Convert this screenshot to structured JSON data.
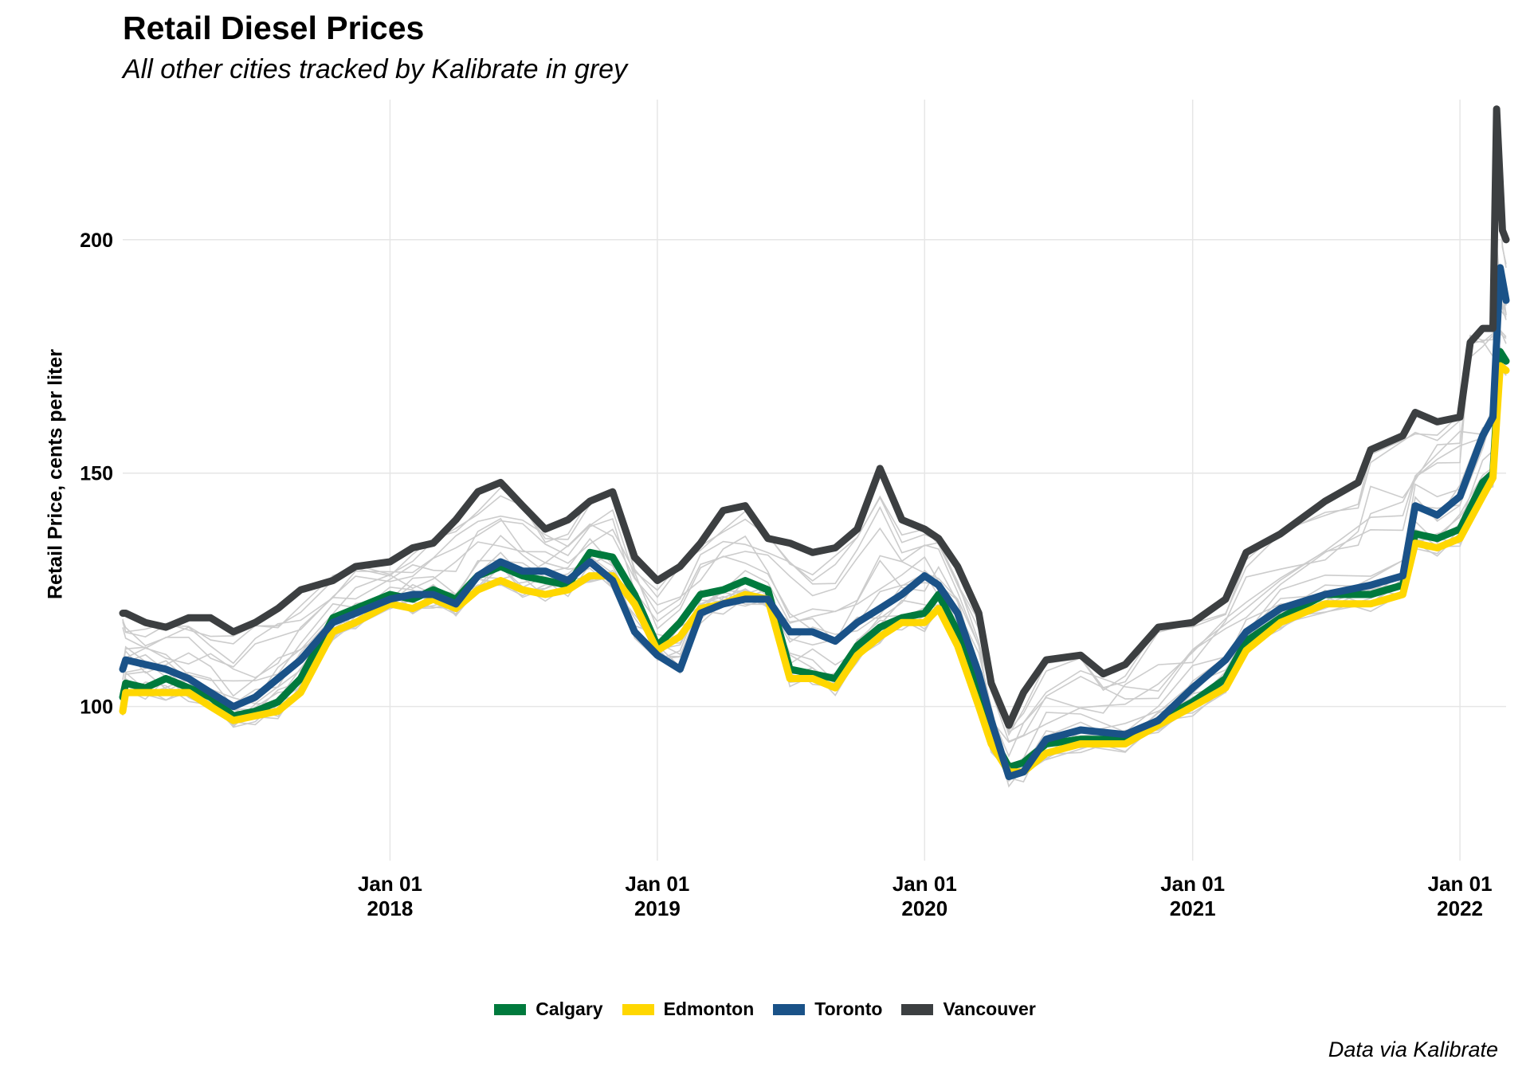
{
  "chart_data": {
    "type": "line",
    "title": "Retail Diesel Prices",
    "subtitle": "All other cities tracked by Kalibrate in grey",
    "xlabel": "",
    "ylabel": "Retail Price, cents per liter",
    "caption": "Data via Kalibrate",
    "xlim": [
      "2017-01-01",
      "2022-03-05"
    ],
    "ylim": [
      67,
      230
    ],
    "x_ticks": [
      {
        "date": "2018-01-01",
        "label": "Jan 01\n2018"
      },
      {
        "date": "2019-01-01",
        "label": "Jan 01\n2019"
      },
      {
        "date": "2020-01-01",
        "label": "Jan 01\n2020"
      },
      {
        "date": "2021-01-01",
        "label": "Jan 01\n2021"
      },
      {
        "date": "2022-01-01",
        "label": "Jan 01\n2022"
      }
    ],
    "y_ticks": [
      100,
      150,
      200
    ],
    "grid": true,
    "legend_position": "bottom",
    "background_series_color": "#cccccc",
    "series": [
      {
        "name": "Calgary",
        "color": "#007a3d",
        "points": [
          [
            "2017-01-01",
            102
          ],
          [
            "2017-01-05",
            105
          ],
          [
            "2017-02-01",
            104
          ],
          [
            "2017-03-01",
            106
          ],
          [
            "2017-04-01",
            104
          ],
          [
            "2017-05-01",
            102
          ],
          [
            "2017-06-01",
            98
          ],
          [
            "2017-07-01",
            99
          ],
          [
            "2017-08-01",
            101
          ],
          [
            "2017-09-01",
            106
          ],
          [
            "2017-10-15",
            119
          ],
          [
            "2017-11-15",
            121
          ],
          [
            "2018-01-01",
            124
          ],
          [
            "2018-02-01",
            123
          ],
          [
            "2018-03-01",
            125
          ],
          [
            "2018-04-01",
            123
          ],
          [
            "2018-05-01",
            128
          ],
          [
            "2018-06-01",
            130
          ],
          [
            "2018-07-01",
            128
          ],
          [
            "2018-08-01",
            127
          ],
          [
            "2018-09-01",
            126
          ],
          [
            "2018-10-01",
            133
          ],
          [
            "2018-11-01",
            132
          ],
          [
            "2018-12-01",
            124
          ],
          [
            "2019-01-01",
            113
          ],
          [
            "2019-02-01",
            118
          ],
          [
            "2019-03-01",
            124
          ],
          [
            "2019-04-01",
            125
          ],
          [
            "2019-05-01",
            127
          ],
          [
            "2019-06-01",
            125
          ],
          [
            "2019-07-01",
            108
          ],
          [
            "2019-08-01",
            107
          ],
          [
            "2019-09-01",
            106
          ],
          [
            "2019-10-01",
            113
          ],
          [
            "2019-11-01",
            117
          ],
          [
            "2019-12-01",
            119
          ],
          [
            "2020-01-01",
            120
          ],
          [
            "2020-01-20",
            124
          ],
          [
            "2020-02-15",
            116
          ],
          [
            "2020-03-15",
            103
          ],
          [
            "2020-04-01",
            94
          ],
          [
            "2020-04-25",
            87
          ],
          [
            "2020-05-15",
            88
          ],
          [
            "2020-06-15",
            92
          ],
          [
            "2020-08-01",
            93
          ],
          [
            "2020-10-01",
            93
          ],
          [
            "2020-11-15",
            97
          ],
          [
            "2021-01-01",
            101
          ],
          [
            "2021-02-15",
            106
          ],
          [
            "2021-03-15",
            114
          ],
          [
            "2021-05-01",
            119
          ],
          [
            "2021-07-01",
            124
          ],
          [
            "2021-09-01",
            124
          ],
          [
            "2021-10-15",
            126
          ],
          [
            "2021-11-01",
            137
          ],
          [
            "2021-12-01",
            136
          ],
          [
            "2022-01-01",
            138
          ],
          [
            "2022-02-01",
            148
          ],
          [
            "2022-02-15",
            150
          ],
          [
            "2022-02-25",
            176
          ],
          [
            "2022-03-05",
            174
          ]
        ]
      },
      {
        "name": "Edmonton",
        "color": "#ffd700",
        "points": [
          [
            "2017-01-01",
            99
          ],
          [
            "2017-01-05",
            103
          ],
          [
            "2017-02-01",
            103
          ],
          [
            "2017-03-01",
            103
          ],
          [
            "2017-04-01",
            103
          ],
          [
            "2017-05-01",
            100
          ],
          [
            "2017-06-01",
            97
          ],
          [
            "2017-07-01",
            98
          ],
          [
            "2017-08-01",
            99
          ],
          [
            "2017-09-01",
            103
          ],
          [
            "2017-10-15",
            116
          ],
          [
            "2017-11-15",
            118
          ],
          [
            "2018-01-01",
            122
          ],
          [
            "2018-02-01",
            121
          ],
          [
            "2018-03-01",
            123
          ],
          [
            "2018-04-01",
            121
          ],
          [
            "2018-05-01",
            125
          ],
          [
            "2018-06-01",
            127
          ],
          [
            "2018-07-01",
            125
          ],
          [
            "2018-08-01",
            124
          ],
          [
            "2018-09-01",
            125
          ],
          [
            "2018-10-01",
            128
          ],
          [
            "2018-11-01",
            128
          ],
          [
            "2018-12-01",
            122
          ],
          [
            "2019-01-01",
            112
          ],
          [
            "2019-02-01",
            115
          ],
          [
            "2019-03-01",
            121
          ],
          [
            "2019-04-01",
            122
          ],
          [
            "2019-05-01",
            124
          ],
          [
            "2019-06-01",
            123
          ],
          [
            "2019-07-01",
            106
          ],
          [
            "2019-08-01",
            106
          ],
          [
            "2019-09-01",
            104
          ],
          [
            "2019-10-01",
            111
          ],
          [
            "2019-11-01",
            115
          ],
          [
            "2019-12-01",
            118
          ],
          [
            "2020-01-01",
            118
          ],
          [
            "2020-01-20",
            121
          ],
          [
            "2020-02-15",
            113
          ],
          [
            "2020-03-15",
            100
          ],
          [
            "2020-04-01",
            92
          ],
          [
            "2020-04-25",
            86
          ],
          [
            "2020-05-15",
            86
          ],
          [
            "2020-06-15",
            90
          ],
          [
            "2020-08-01",
            92
          ],
          [
            "2020-10-01",
            92
          ],
          [
            "2020-11-15",
            96
          ],
          [
            "2021-01-01",
            100
          ],
          [
            "2021-02-15",
            104
          ],
          [
            "2021-03-15",
            112
          ],
          [
            "2021-05-01",
            118
          ],
          [
            "2021-07-01",
            122
          ],
          [
            "2021-09-01",
            122
          ],
          [
            "2021-10-15",
            124
          ],
          [
            "2021-11-01",
            135
          ],
          [
            "2021-12-01",
            134
          ],
          [
            "2022-01-01",
            136
          ],
          [
            "2022-02-01",
            145
          ],
          [
            "2022-02-15",
            149
          ],
          [
            "2022-02-25",
            173
          ],
          [
            "2022-03-05",
            172
          ]
        ]
      },
      {
        "name": "Toronto",
        "color": "#1a5288",
        "points": [
          [
            "2017-01-01",
            108
          ],
          [
            "2017-01-05",
            110
          ],
          [
            "2017-02-01",
            109
          ],
          [
            "2017-03-01",
            108
          ],
          [
            "2017-04-01",
            106
          ],
          [
            "2017-05-01",
            103
          ],
          [
            "2017-06-01",
            100
          ],
          [
            "2017-07-01",
            102
          ],
          [
            "2017-08-01",
            106
          ],
          [
            "2017-09-01",
            110
          ],
          [
            "2017-10-15",
            118
          ],
          [
            "2017-11-15",
            120
          ],
          [
            "2018-01-01",
            123
          ],
          [
            "2018-02-01",
            124
          ],
          [
            "2018-03-01",
            124
          ],
          [
            "2018-04-01",
            122
          ],
          [
            "2018-05-01",
            128
          ],
          [
            "2018-06-01",
            131
          ],
          [
            "2018-07-01",
            129
          ],
          [
            "2018-08-01",
            129
          ],
          [
            "2018-09-01",
            127
          ],
          [
            "2018-10-01",
            131
          ],
          [
            "2018-11-01",
            127
          ],
          [
            "2018-12-01",
            116
          ],
          [
            "2019-01-01",
            111
          ],
          [
            "2019-02-01",
            108
          ],
          [
            "2019-03-01",
            120
          ],
          [
            "2019-04-01",
            122
          ],
          [
            "2019-05-01",
            123
          ],
          [
            "2019-06-01",
            123
          ],
          [
            "2019-07-01",
            116
          ],
          [
            "2019-08-01",
            116
          ],
          [
            "2019-09-01",
            114
          ],
          [
            "2019-10-01",
            118
          ],
          [
            "2019-11-01",
            121
          ],
          [
            "2019-12-01",
            124
          ],
          [
            "2020-01-01",
            128
          ],
          [
            "2020-01-20",
            126
          ],
          [
            "2020-02-15",
            120
          ],
          [
            "2020-03-15",
            107
          ],
          [
            "2020-04-01",
            97
          ],
          [
            "2020-04-25",
            85
          ],
          [
            "2020-05-15",
            86
          ],
          [
            "2020-06-15",
            93
          ],
          [
            "2020-08-01",
            95
          ],
          [
            "2020-10-01",
            94
          ],
          [
            "2020-11-15",
            97
          ],
          [
            "2021-01-01",
            104
          ],
          [
            "2021-02-15",
            110
          ],
          [
            "2021-03-15",
            116
          ],
          [
            "2021-05-01",
            121
          ],
          [
            "2021-07-01",
            124
          ],
          [
            "2021-09-01",
            126
          ],
          [
            "2021-10-15",
            128
          ],
          [
            "2021-11-01",
            143
          ],
          [
            "2021-12-01",
            141
          ],
          [
            "2022-01-01",
            145
          ],
          [
            "2022-02-01",
            158
          ],
          [
            "2022-02-15",
            162
          ],
          [
            "2022-02-25",
            194
          ],
          [
            "2022-03-05",
            187
          ]
        ]
      },
      {
        "name": "Vancouver",
        "color": "#3c3f41",
        "points": [
          [
            "2017-01-01",
            120
          ],
          [
            "2017-01-05",
            120
          ],
          [
            "2017-02-01",
            118
          ],
          [
            "2017-03-01",
            117
          ],
          [
            "2017-04-01",
            119
          ],
          [
            "2017-05-01",
            119
          ],
          [
            "2017-06-01",
            116
          ],
          [
            "2017-07-01",
            118
          ],
          [
            "2017-08-01",
            121
          ],
          [
            "2017-09-01",
            125
          ],
          [
            "2017-10-15",
            127
          ],
          [
            "2017-11-15",
            130
          ],
          [
            "2018-01-01",
            131
          ],
          [
            "2018-02-01",
            134
          ],
          [
            "2018-03-01",
            135
          ],
          [
            "2018-04-01",
            140
          ],
          [
            "2018-05-01",
            146
          ],
          [
            "2018-06-01",
            148
          ],
          [
            "2018-07-01",
            143
          ],
          [
            "2018-08-01",
            138
          ],
          [
            "2018-09-01",
            140
          ],
          [
            "2018-10-01",
            144
          ],
          [
            "2018-11-01",
            146
          ],
          [
            "2018-12-01",
            132
          ],
          [
            "2019-01-01",
            127
          ],
          [
            "2019-02-01",
            130
          ],
          [
            "2019-03-01",
            135
          ],
          [
            "2019-04-01",
            142
          ],
          [
            "2019-05-01",
            143
          ],
          [
            "2019-06-01",
            136
          ],
          [
            "2019-07-01",
            135
          ],
          [
            "2019-08-01",
            133
          ],
          [
            "2019-09-01",
            134
          ],
          [
            "2019-10-01",
            138
          ],
          [
            "2019-11-01",
            151
          ],
          [
            "2019-12-01",
            140
          ],
          [
            "2020-01-01",
            138
          ],
          [
            "2020-01-20",
            136
          ],
          [
            "2020-02-15",
            130
          ],
          [
            "2020-03-15",
            120
          ],
          [
            "2020-04-01",
            105
          ],
          [
            "2020-04-25",
            96
          ],
          [
            "2020-05-15",
            103
          ],
          [
            "2020-06-15",
            110
          ],
          [
            "2020-08-01",
            111
          ],
          [
            "2020-09-01",
            107
          ],
          [
            "2020-10-01",
            109
          ],
          [
            "2020-11-15",
            117
          ],
          [
            "2021-01-01",
            118
          ],
          [
            "2021-02-15",
            123
          ],
          [
            "2021-03-15",
            133
          ],
          [
            "2021-05-01",
            137
          ],
          [
            "2021-07-01",
            144
          ],
          [
            "2021-08-15",
            148
          ],
          [
            "2021-09-01",
            155
          ],
          [
            "2021-10-15",
            158
          ],
          [
            "2021-11-01",
            163
          ],
          [
            "2021-12-01",
            161
          ],
          [
            "2022-01-01",
            162
          ],
          [
            "2022-01-15",
            178
          ],
          [
            "2022-02-01",
            181
          ],
          [
            "2022-02-15",
            181
          ],
          [
            "2022-02-20",
            228
          ],
          [
            "2022-02-28",
            202
          ],
          [
            "2022-03-05",
            200
          ]
        ]
      }
    ]
  }
}
